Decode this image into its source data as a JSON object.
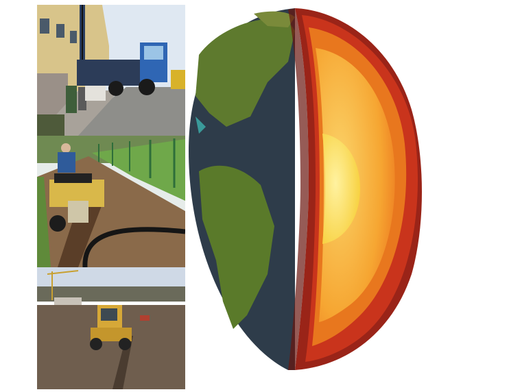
{
  "collage": {
    "panels": [
      {
        "subject": "drilling-rig-truck"
      },
      {
        "subject": "trencher-laying-pipe"
      },
      {
        "subject": "excavator-digging-field"
      }
    ],
    "earth_cutaway": {
      "layers": [
        "crust",
        "mantle",
        "outer-core",
        "inner-core"
      ]
    }
  },
  "colors": {
    "background": "#ffffff",
    "ocean": "#2e3c4a",
    "land": "#5e7a2e",
    "mantle_outer": "#c9341c",
    "mantle_inner": "#e8771e",
    "outer_core": "#f7b83a",
    "inner_core": "#fde35a",
    "sky": "#dfe8f2",
    "soil": "#7a5e42"
  }
}
